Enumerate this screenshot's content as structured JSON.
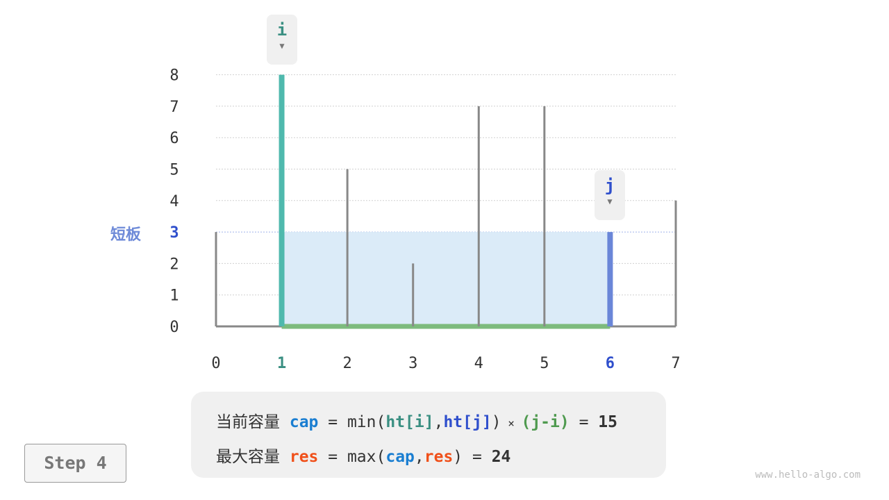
{
  "heights": [
    3,
    8,
    5,
    2,
    7,
    7,
    3,
    4
  ],
  "pointer_i": {
    "label": "i",
    "index": 1,
    "color": "#4fb9ad"
  },
  "pointer_j": {
    "label": "j",
    "index": 6,
    "color": "#6a86d8"
  },
  "short_board": {
    "label": "短板",
    "value": "3"
  },
  "y_ticks": [
    "0",
    "1",
    "2",
    "3",
    "4",
    "5",
    "6",
    "7",
    "8"
  ],
  "x_ticks": [
    "0",
    "1",
    "2",
    "3",
    "4",
    "5",
    "6",
    "7"
  ],
  "colors": {
    "wall": "#888888",
    "fill": "#dbebf8",
    "base": "#7dbb7d",
    "i_text": "#3a8f82",
    "j_text": "#2f4fcc",
    "cap": "#1a7ed1",
    "res": "#f0501a",
    "green": "#4f9a4f"
  },
  "formula": {
    "line1": {
      "label": "当前容量",
      "var": "cap",
      "eq": " = ",
      "fn": "min(",
      "a": "ht[i]",
      "comma": ",",
      "b": "ht[j]",
      "close": ")",
      "times": " × ",
      "c": "(j-i)",
      "eq2": " = ",
      "result": "15"
    },
    "line2": {
      "label": "最大容量",
      "var": "res",
      "eq": " = ",
      "fn": "max(",
      "a": "cap",
      "comma": ",",
      "b": "res",
      "close": ")",
      "eq2": " = ",
      "result": "24"
    }
  },
  "step": "Step 4",
  "watermark": "www.hello-algo.com"
}
